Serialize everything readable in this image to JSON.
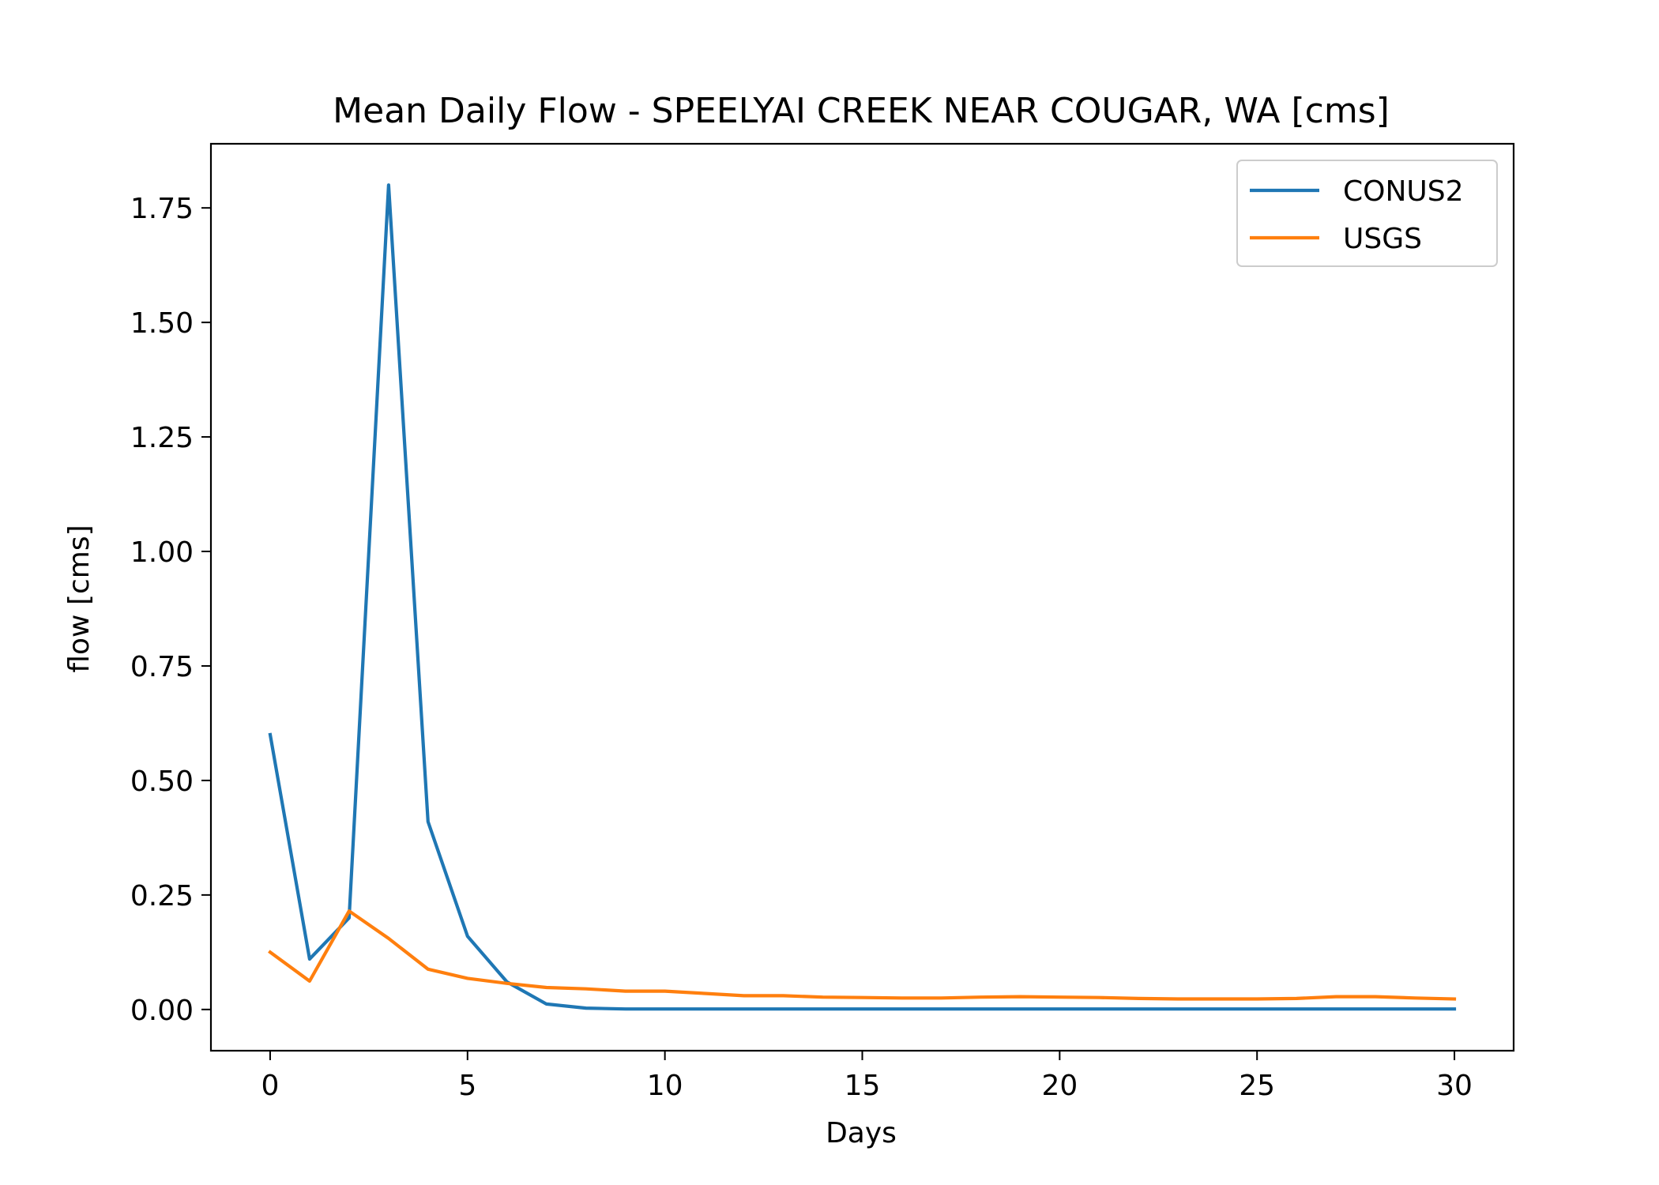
{
  "chart_data": {
    "type": "line",
    "title": "Mean Daily Flow - SPEELYAI CREEK NEAR COUGAR, WA [cms]",
    "xlabel": "Days",
    "ylabel": "flow [cms]",
    "xlim": [
      -1.5,
      31.5
    ],
    "ylim": [
      -0.09,
      1.89
    ],
    "xticks": [
      0,
      5,
      10,
      15,
      20,
      25,
      30
    ],
    "xtick_labels": [
      "0",
      "5",
      "10",
      "15",
      "20",
      "25",
      "30"
    ],
    "yticks": [
      0.0,
      0.25,
      0.5,
      0.75,
      1.0,
      1.25,
      1.5,
      1.75
    ],
    "ytick_labels": [
      "0.00",
      "0.25",
      "0.50",
      "0.75",
      "1.00",
      "1.25",
      "1.50",
      "1.75"
    ],
    "grid": false,
    "legend": "top-right",
    "x": [
      0,
      1,
      2,
      3,
      4,
      5,
      6,
      7,
      8,
      9,
      10,
      11,
      12,
      13,
      14,
      15,
      16,
      17,
      18,
      19,
      20,
      21,
      22,
      23,
      24,
      25,
      26,
      27,
      28,
      29,
      30
    ],
    "series": [
      {
        "name": "CONUS2",
        "color": "#1f77b4",
        "values": [
          0.6,
          0.11,
          0.2,
          1.8,
          0.41,
          0.16,
          0.06,
          0.012,
          0.003,
          0.001,
          0.001,
          0.001,
          0.001,
          0.001,
          0.001,
          0.001,
          0.001,
          0.001,
          0.001,
          0.001,
          0.001,
          0.001,
          0.001,
          0.001,
          0.001,
          0.001,
          0.001,
          0.001,
          0.001,
          0.001,
          0.001
        ]
      },
      {
        "name": "USGS",
        "color": "#ff7f0e",
        "values": [
          0.125,
          0.062,
          0.215,
          0.155,
          0.088,
          0.068,
          0.057,
          0.048,
          0.045,
          0.04,
          0.04,
          0.035,
          0.03,
          0.03,
          0.027,
          0.026,
          0.025,
          0.025,
          0.027,
          0.028,
          0.027,
          0.026,
          0.024,
          0.023,
          0.023,
          0.023,
          0.024,
          0.028,
          0.028,
          0.025,
          0.023
        ]
      }
    ]
  }
}
